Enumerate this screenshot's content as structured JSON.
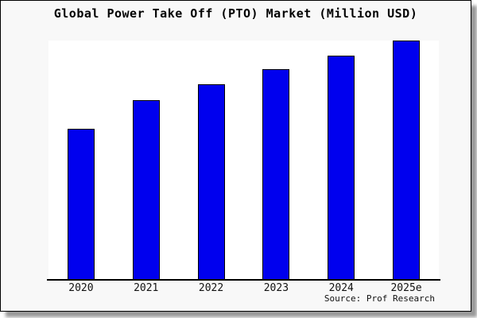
{
  "chart_data": {
    "type": "bar",
    "title": "Global Power Take Off (PTO) Market (Million USD)",
    "categories": [
      "2020",
      "2021",
      "2022",
      "2023",
      "2024",
      "2025e"
    ],
    "values": [
      62.6,
      74.8,
      81.2,
      87.6,
      93.3,
      99.8
    ],
    "value_unit": "relative bar height, percent of plot height (no y-axis tick labels visible)",
    "xlabel": "",
    "ylabel": "",
    "ylim": [
      0,
      100
    ],
    "grid": false,
    "legend": false,
    "source": "Source: Prof Research",
    "colors": {
      "bar_fill": "#0000ee",
      "bar_edge": "#000000",
      "figure_background": "#f8f8f8",
      "plot_background": "#ffffff",
      "frame_border": "#000000",
      "shadow": "#999999",
      "text": "#000000"
    }
  }
}
